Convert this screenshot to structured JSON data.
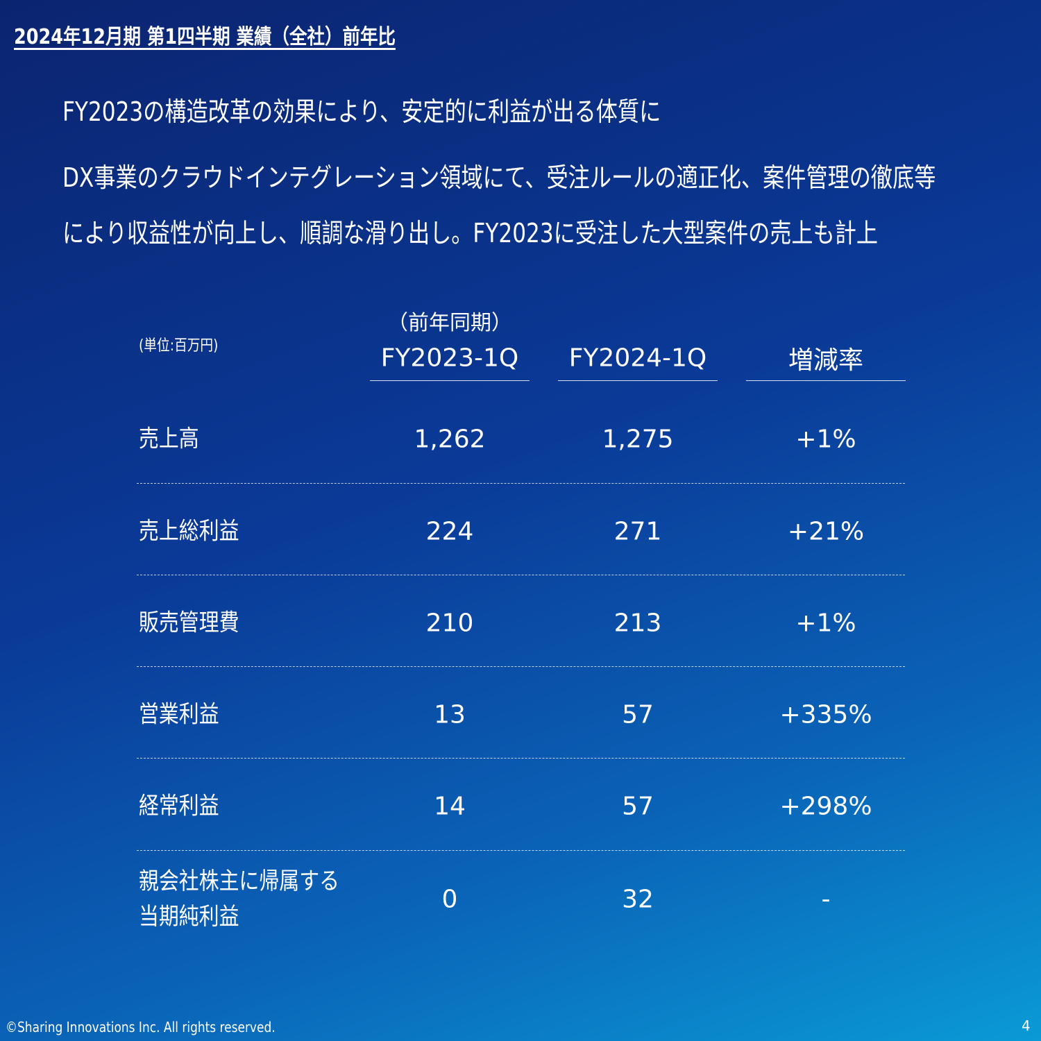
{
  "header": {
    "title": "2024年12月期 第1四半期 業績（全社）前年比"
  },
  "bullets": [
    {
      "lines": [
        "FY2023の構造改革の効果により、安定的に利益が出る体質に"
      ]
    },
    {
      "lines": [
        "DX事業のクラウドインテグレーション領域にて、受注ルールの適正化、案件管理の徹底等",
        "により収益性が向上し、順調な滑り出し。FY2023に受注した大型案件の売上も計上"
      ]
    }
  ],
  "table": {
    "unit": "(単位:百万円)",
    "columns": [
      {
        "note": "（前年同期）",
        "label": "FY2023-1Q"
      },
      {
        "label": "FY2024-1Q"
      },
      {
        "label": "増減率"
      }
    ],
    "rows": [
      {
        "label": "売上高",
        "cells": [
          "1,262",
          "1,275",
          "+1%"
        ]
      },
      {
        "label": "売上総利益",
        "cells": [
          "224",
          "271",
          "+21%"
        ]
      },
      {
        "label": "販売管理費",
        "cells": [
          "210",
          "213",
          "+1%"
        ]
      },
      {
        "label": "営業利益",
        "cells": [
          "13",
          "57",
          "+335%"
        ]
      },
      {
        "label": "経常利益",
        "cells": [
          "14",
          "57",
          "+298%"
        ]
      },
      {
        "label": "親会社株主に帰属する\n当期純利益",
        "cells": [
          "0",
          "32",
          "-"
        ]
      }
    ]
  },
  "footer": {
    "copyright": "©Sharing Innovations Inc. All rights reserved.",
    "page": "4"
  }
}
